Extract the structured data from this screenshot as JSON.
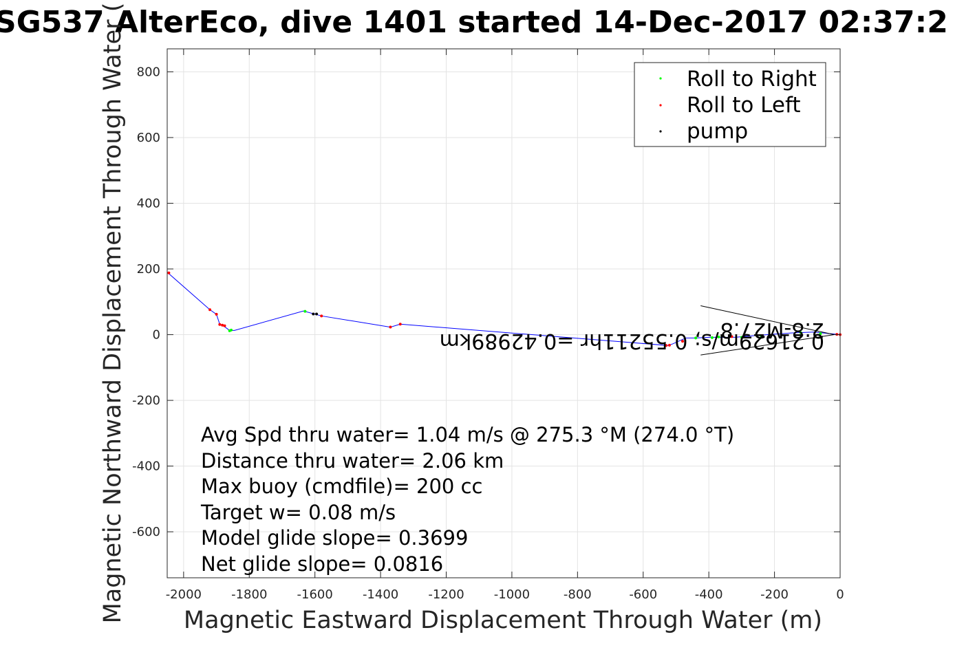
{
  "chart_data": {
    "type": "scatter",
    "title": "SG537 AlterEco, dive 1401 started 14-Dec-2017 02:37:2",
    "xlabel": "Magnetic Eastward Displacement Through Water (m)",
    "ylabel": "Magnetic Northward Displacement Through Water (",
    "xlim": [
      -2050,
      0
    ],
    "ylim": [
      -740,
      870
    ],
    "xticks": [
      -2000,
      -1800,
      -1600,
      -1400,
      -1200,
      -1000,
      -800,
      -600,
      -400,
      -200,
      0
    ],
    "xtick_labels": [
      "-2000",
      "-1800",
      "-1600",
      "-1400",
      "-1200",
      "-1000",
      "-800",
      "-600",
      "-400",
      "-200",
      "0"
    ],
    "yticks": [
      -600,
      -400,
      -200,
      0,
      200,
      400,
      600,
      800
    ],
    "ytick_labels": [
      "-600",
      "-400",
      "-200",
      "0",
      "200",
      "400",
      "600",
      "800"
    ],
    "grid": true,
    "legend_position": "top-right",
    "legend": [
      {
        "label": "Roll to Right",
        "color": "#00ff00"
      },
      {
        "label": "Roll to Left",
        "color": "#ff0000"
      },
      {
        "label": "pump",
        "color": "#000000"
      }
    ],
    "track": {
      "color": "#0000ff",
      "x": [
        0,
        -80,
        -150,
        -250,
        -320,
        -360,
        -400,
        -440,
        -470,
        -510,
        -525,
        -1340,
        -1370,
        -1580,
        -1635,
        -1845,
        -1860,
        -1875,
        -1890,
        -1900,
        -1920,
        -2050
      ],
      "y": [
        0,
        8,
        5,
        -2,
        -8,
        -8,
        -8,
        -10,
        -10,
        -28,
        -33,
        32,
        23,
        57,
        72,
        13,
        13,
        24,
        32,
        62,
        76,
        190
      ]
    },
    "series": [
      {
        "name": "Roll to Right",
        "color": "#00ff00",
        "x": [
          -60,
          -120,
          -240,
          -300,
          -370,
          -390,
          -440,
          -1630,
          -1855,
          -1860
        ],
        "y": [
          3,
          6,
          -4,
          -8,
          -7,
          -9,
          -10,
          71,
          14,
          12
        ]
      },
      {
        "name": "Roll to Left",
        "color": "#ff0000",
        "x": [
          0,
          -10,
          -330,
          -480,
          -530,
          -520,
          -1340,
          -1370,
          -1580,
          -1875,
          -1882,
          -1890,
          -1900,
          -1920,
          -2045
        ],
        "y": [
          0,
          1,
          -6,
          -20,
          -33,
          -32,
          32,
          23,
          57,
          27,
          29,
          31,
          62,
          76,
          188
        ]
      },
      {
        "name": "pump",
        "color": "#000000",
        "x": [
          -1605,
          -1595
        ],
        "y": [
          63,
          63
        ]
      }
    ],
    "heading_arrow": {
      "x": [
        -425,
        -18,
        -425
      ],
      "y": [
        88,
        0,
        -62
      ]
    },
    "flipped_annotation": "0.21629m/s; 0.55211hr =0.42989km",
    "flipped_annotation_extra": "2.8-M27.8",
    "annotations": [
      "Avg Spd thru water=  1.04 m/s @ 275.3 °M (274.0 °T)",
      "Distance thru water=  2.06 km",
      "Max buoy (cmdfile)= 200 cc",
      "Target w= 0.08 m/s",
      "Model glide slope= 0.3699",
      "Net glide slope= 0.0816"
    ]
  }
}
